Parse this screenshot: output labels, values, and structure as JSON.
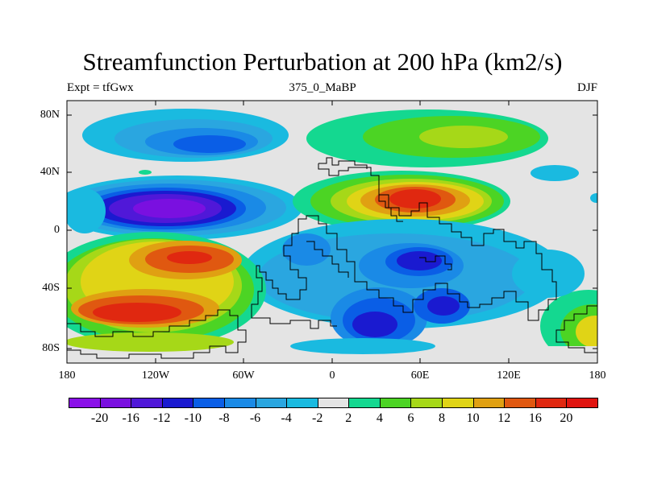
{
  "title": "Streamfunction Perturbation at 200 hPa (km2/s)",
  "subtitle_left": "Expt = tfGwx",
  "subtitle_center": "375_0_MaBP",
  "subtitle_right": "DJF",
  "lat_ticks": [
    "80N",
    "40N",
    "0",
    "40S",
    "80S"
  ],
  "lon_ticks": [
    "180",
    "120W",
    "60W",
    "0",
    "60E",
    "120E",
    "180"
  ],
  "colorbar": {
    "labels": [
      "-20",
      "-16",
      "-12",
      "-10",
      "-8",
      "-6",
      "-4",
      "-2",
      "2",
      "4",
      "6",
      "8",
      "10",
      "12",
      "16",
      "20"
    ],
    "colors": [
      "#8a10e8",
      "#7a10e0",
      "#5018d8",
      "#1a1ad0",
      "#0a5ee6",
      "#1a8ae6",
      "#2aa6e0",
      "#1abae0",
      "#e4e4e4",
      "#14d890",
      "#4cd424",
      "#a6d818",
      "#e0d416",
      "#e0a012",
      "#e05810",
      "#e02810",
      "#e01410"
    ]
  },
  "map_colors": {
    "background": "#e4e4e4",
    "c_m20": "#7a10e0",
    "c_m12": "#5018d8",
    "c_m10": "#1a1ad0",
    "c_m8": "#0a5ee6",
    "c_m6": "#1a8ae6",
    "c_m4": "#2aa6e0",
    "c_m2": "#1abae0",
    "c_p2": "#14d890",
    "c_p4": "#4cd424",
    "c_p6": "#a6d818",
    "c_p8": "#e0d416",
    "c_p10": "#e0a012",
    "c_p12": "#e05810",
    "c_p16": "#e02810"
  }
}
